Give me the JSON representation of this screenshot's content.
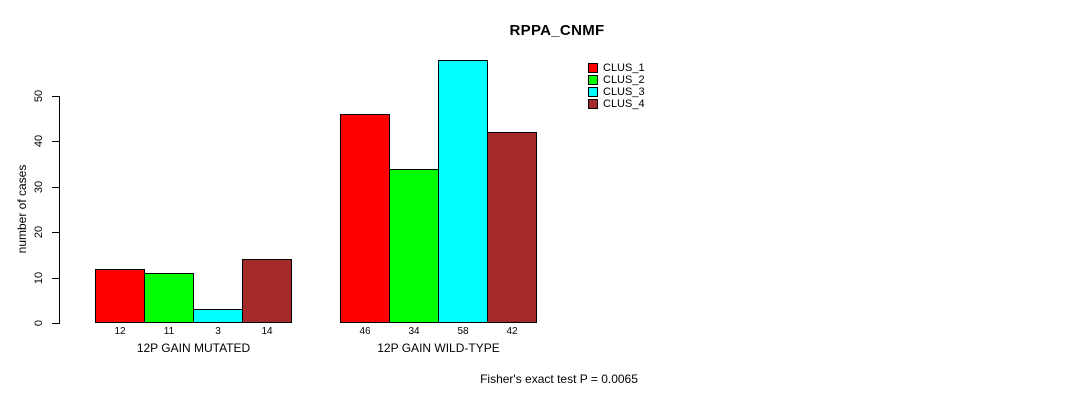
{
  "chart_data": {
    "type": "bar",
    "title": "RPPA_CNMF",
    "ylabel": "number of cases",
    "annotation": "Fisher's exact test P = 0.0065",
    "series": [
      "CLUS_1",
      "CLUS_2",
      "CLUS_3",
      "CLUS_4"
    ],
    "colors": [
      "#FF0000",
      "#00FF00",
      "#00FFFF",
      "#A52A2A"
    ],
    "groups": [
      {
        "label": "12P GAIN MUTATED",
        "values": [
          12,
          11,
          3,
          14
        ]
      },
      {
        "label": "12P GAIN WILD-TYPE",
        "values": [
          46,
          34,
          58,
          42
        ]
      }
    ],
    "yticks": [
      0,
      10,
      20,
      30,
      40,
      50
    ],
    "ylim": [
      0,
      58
    ],
    "grid": false,
    "legend_position": "top-right",
    "legend": {
      "items": [
        {
          "label": "CLUS_1",
          "color": "#FF0000"
        },
        {
          "label": "CLUS_2",
          "color": "#00FF00"
        },
        {
          "label": "CLUS_3",
          "color": "#00FFFF"
        },
        {
          "label": "CLUS_4",
          "color": "#A52A2A"
        }
      ]
    }
  }
}
